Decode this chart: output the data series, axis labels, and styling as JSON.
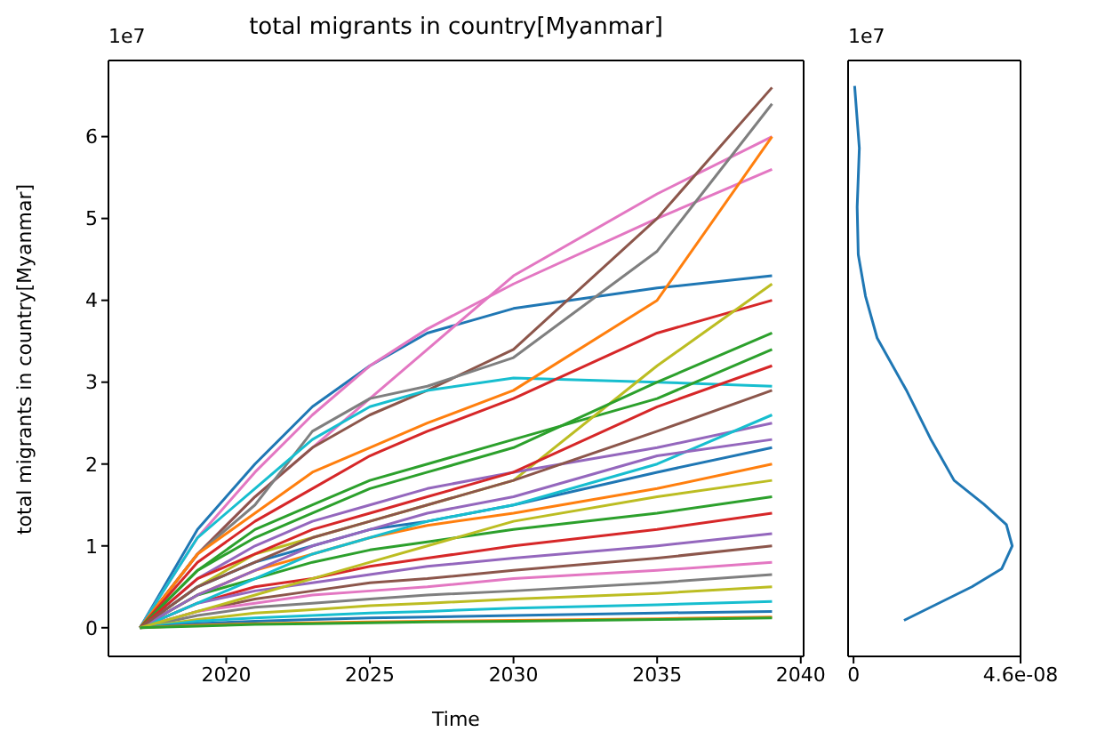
{
  "chart_data": [
    {
      "type": "line",
      "title": "total migrants in country[Myanmar]",
      "xlabel": "Time",
      "ylabel": "total migrants in country[Myanmar]",
      "annotations": [
        "1e7"
      ],
      "x": [
        2017,
        2019,
        2021,
        2023,
        2025,
        2027,
        2030,
        2035,
        2039
      ],
      "xlim": [
        2015.9,
        2040.1
      ],
      "xticks": [
        2020,
        2025,
        2030,
        2035,
        2040
      ],
      "ylim": [
        -0.35,
        6.93
      ],
      "yticks": [
        0,
        1,
        2,
        3,
        4,
        5,
        6
      ],
      "series": [
        {
          "color": "#1f77b4",
          "values": [
            0,
            1.2,
            2.0,
            2.7,
            3.2,
            3.6,
            3.9,
            4.15,
            4.3
          ]
        },
        {
          "color": "#e377c2",
          "values": [
            0,
            1.1,
            1.9,
            2.6,
            3.2,
            3.65,
            4.2,
            5.0,
            5.6
          ]
        },
        {
          "color": "#e377c2",
          "values": [
            0,
            0.9,
            1.6,
            2.2,
            2.8,
            3.4,
            4.3,
            5.3,
            6.0
          ]
        },
        {
          "color": "#8c564b",
          "values": [
            0,
            0.9,
            1.6,
            2.2,
            2.6,
            2.9,
            3.4,
            5.0,
            6.6
          ]
        },
        {
          "color": "#7f7f7f",
          "values": [
            0,
            0.9,
            1.5,
            2.4,
            2.8,
            2.95,
            3.3,
            4.6,
            6.4
          ]
        },
        {
          "color": "#17becf",
          "values": [
            0,
            1.1,
            1.7,
            2.3,
            2.7,
            2.9,
            3.05,
            3.0,
            2.95
          ]
        },
        {
          "color": "#ff7f0e",
          "values": [
            0,
            0.9,
            1.4,
            1.9,
            2.2,
            2.5,
            2.9,
            4.0,
            6.0
          ]
        },
        {
          "color": "#d62728",
          "values": [
            0,
            0.8,
            1.3,
            1.7,
            2.1,
            2.4,
            2.8,
            3.6,
            4.0
          ]
        },
        {
          "color": "#2ca02c",
          "values": [
            0,
            0.7,
            1.2,
            1.5,
            1.8,
            2.0,
            2.3,
            2.8,
            3.4
          ]
        },
        {
          "color": "#bcbd22",
          "values": [
            0,
            0.5,
            0.9,
            1.1,
            1.3,
            1.5,
            1.8,
            3.2,
            4.2
          ]
        },
        {
          "color": "#9467bd",
          "values": [
            0,
            0.6,
            1.0,
            1.3,
            1.5,
            1.7,
            1.9,
            2.2,
            2.5
          ]
        },
        {
          "color": "#1f77b4",
          "values": [
            0,
            0.5,
            0.8,
            1.0,
            1.2,
            1.3,
            1.5,
            1.9,
            2.2
          ]
        },
        {
          "color": "#ff7f0e",
          "values": [
            0,
            0.4,
            0.7,
            0.9,
            1.1,
            1.25,
            1.4,
            1.7,
            2.0
          ]
        },
        {
          "color": "#2ca02c",
          "values": [
            0,
            0.4,
            0.6,
            0.8,
            0.95,
            1.05,
            1.2,
            1.4,
            1.6
          ]
        },
        {
          "color": "#d62728",
          "values": [
            0,
            0.3,
            0.5,
            0.6,
            0.75,
            0.85,
            1.0,
            1.2,
            1.4
          ]
        },
        {
          "color": "#9467bd",
          "values": [
            0,
            0.3,
            0.45,
            0.55,
            0.65,
            0.75,
            0.85,
            1.0,
            1.15
          ]
        },
        {
          "color": "#8c564b",
          "values": [
            0,
            0.2,
            0.35,
            0.45,
            0.55,
            0.6,
            0.7,
            0.85,
            1.0
          ]
        },
        {
          "color": "#e377c2",
          "values": [
            0,
            0.2,
            0.3,
            0.4,
            0.45,
            0.5,
            0.6,
            0.7,
            0.8
          ]
        },
        {
          "color": "#7f7f7f",
          "values": [
            0,
            0.15,
            0.25,
            0.3,
            0.35,
            0.4,
            0.45,
            0.55,
            0.65
          ]
        },
        {
          "color": "#bcbd22",
          "values": [
            0,
            0.1,
            0.18,
            0.22,
            0.27,
            0.3,
            0.35,
            0.42,
            0.5
          ]
        },
        {
          "color": "#17becf",
          "values": [
            0,
            0.08,
            0.12,
            0.15,
            0.18,
            0.2,
            0.24,
            0.28,
            0.32
          ]
        },
        {
          "color": "#1f77b4",
          "values": [
            0,
            0.05,
            0.08,
            0.1,
            0.12,
            0.13,
            0.15,
            0.18,
            0.2
          ]
        },
        {
          "color": "#ff7f0e",
          "values": [
            0,
            0.03,
            0.05,
            0.06,
            0.07,
            0.08,
            0.09,
            0.11,
            0.13
          ]
        },
        {
          "color": "#2ca02c",
          "values": [
            0,
            0.7,
            1.1,
            1.4,
            1.7,
            1.9,
            2.2,
            3.0,
            3.6
          ]
        },
        {
          "color": "#d62728",
          "values": [
            0,
            0.6,
            0.9,
            1.2,
            1.4,
            1.6,
            1.9,
            2.7,
            3.2
          ]
        },
        {
          "color": "#17becf",
          "values": [
            0,
            0.3,
            0.6,
            0.9,
            1.1,
            1.3,
            1.5,
            2.0,
            2.6
          ]
        },
        {
          "color": "#9467bd",
          "values": [
            0,
            0.4,
            0.7,
            1.0,
            1.2,
            1.4,
            1.6,
            2.1,
            2.3
          ]
        },
        {
          "color": "#8c564b",
          "values": [
            0,
            0.5,
            0.8,
            1.1,
            1.3,
            1.5,
            1.8,
            2.4,
            2.9
          ]
        },
        {
          "color": "#bcbd22",
          "values": [
            0,
            0.2,
            0.4,
            0.6,
            0.8,
            1.0,
            1.3,
            1.6,
            1.8
          ]
        },
        {
          "color": "#2ca02c",
          "values": [
            0,
            0.02,
            0.04,
            0.05,
            0.06,
            0.07,
            0.08,
            0.1,
            0.12
          ]
        }
      ]
    },
    {
      "type": "line",
      "annotations": [
        "1e7"
      ],
      "xlim": [
        -1.5e-09,
        4.6e-08
      ],
      "xticks": [
        0,
        {
          "value": 4.6e-08,
          "label": "4.6e-08"
        }
      ],
      "ylim": [
        -0.35,
        6.93
      ],
      "yticks": [
        0,
        1,
        2,
        3,
        4,
        5,
        6
      ],
      "tick_labels": "x",
      "series": [
        {
          "color": "#1f77b4",
          "x": [
            1.39e-08,
            3.26e-08,
            4.08e-08,
            4.37e-08,
            4.21e-08,
            3.59e-08,
            2.77e-08,
            2.12e-08,
            1.47e-08,
            6.5e-09,
            3.3e-09,
            1.3e-09,
            1e-09,
            1.6e-09,
            3e-10
          ],
          "values": [
            0.09,
            0.5,
            0.72,
            1.0,
            1.26,
            1.51,
            1.8,
            2.31,
            2.89,
            3.54,
            4.05,
            4.56,
            5.14,
            5.86,
            6.62
          ]
        }
      ]
    }
  ]
}
